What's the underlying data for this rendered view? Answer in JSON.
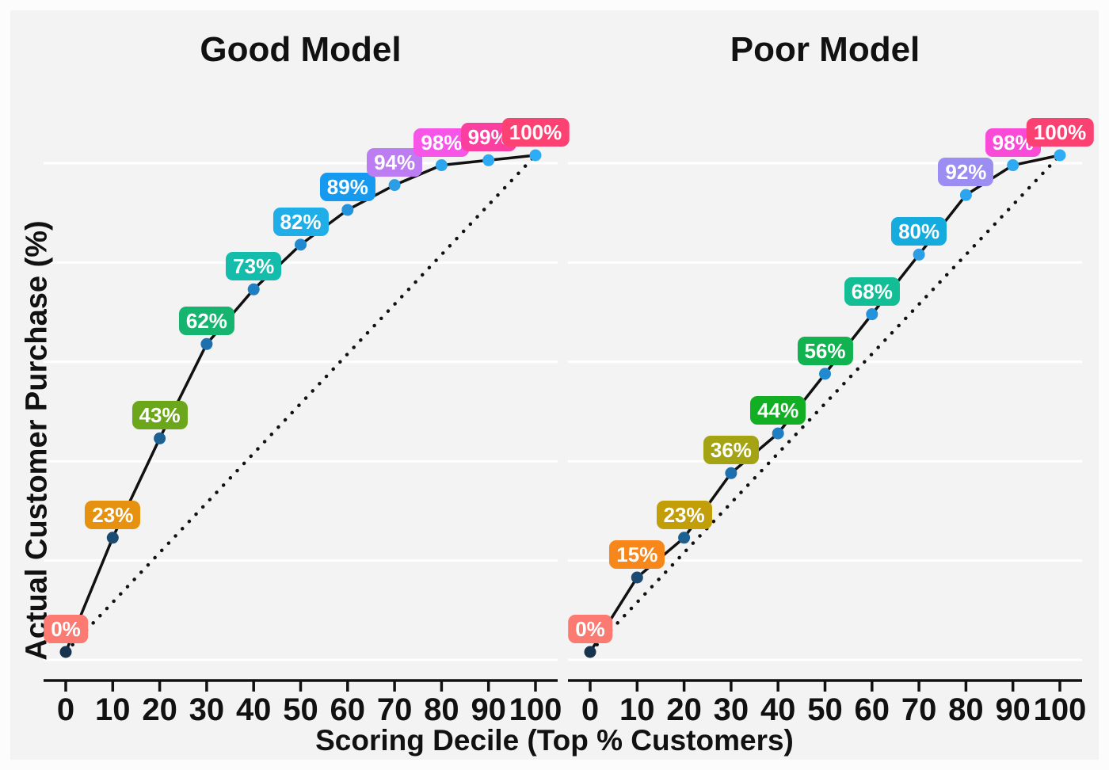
{
  "figure": {
    "x_axis_title": "Scoring Decile (Top % Customers)",
    "y_axis_title": "Actual Customer Purchase (%)",
    "x_tick_labels": [
      "0",
      "10",
      "20",
      "30",
      "40",
      "50",
      "60",
      "70",
      "80",
      "90",
      "100"
    ],
    "background_color": "#f3f3f3",
    "gridline_color": "#ffffff",
    "axis_color": "#111111",
    "curve_color": "#111111",
    "baseline_color": "#111111"
  },
  "chart_data": [
    {
      "type": "line",
      "title": "Good Model",
      "xlabel": "Scoring Decile (Top % Customers)",
      "ylabel": "Actual Customer Purchase (%)",
      "x": [
        0,
        10,
        20,
        30,
        40,
        50,
        60,
        70,
        80,
        90,
        100
      ],
      "values": [
        0,
        23,
        43,
        62,
        73,
        82,
        89,
        94,
        98,
        99,
        100
      ],
      "point_labels": [
        "0%",
        "23%",
        "43%",
        "62%",
        "73%",
        "82%",
        "89%",
        "94%",
        "98%",
        "99%",
        "100%"
      ],
      "label_colors": [
        "#FB7A72",
        "#E69110",
        "#6BA61B",
        "#15B56F",
        "#14BCAC",
        "#1FAEE8",
        "#169AF0",
        "#BD7DF2",
        "#F655E8",
        "#FB3FA1",
        "#FB4273"
      ],
      "point_colors": [
        "#17344F",
        "#1B4B73",
        "#1D6092",
        "#1E6FAE",
        "#1F7FC2",
        "#2189CF",
        "#2493DB",
        "#2D9DE6",
        "#2BA5EE",
        "#2EAAF3",
        "#2EADF6"
      ],
      "baseline": {
        "style": "dotted",
        "from": [
          0,
          0
        ],
        "to": [
          100,
          100
        ]
      },
      "xlim": [
        0,
        100
      ],
      "ylim": [
        0,
        100
      ],
      "gridline_values": [
        0,
        20,
        40,
        60,
        80,
        100
      ],
      "grid": "horizontal-only",
      "legend": "none"
    },
    {
      "type": "line",
      "title": "Poor Model",
      "xlabel": "Scoring Decile (Top % Customers)",
      "ylabel": "Actual Customer Purchase (%)",
      "x": [
        0,
        10,
        20,
        30,
        40,
        50,
        60,
        70,
        80,
        90,
        100
      ],
      "values": [
        0,
        15,
        23,
        36,
        44,
        56,
        68,
        80,
        92,
        98,
        100
      ],
      "point_labels": [
        "0%",
        "15%",
        "23%",
        "36%",
        "44%",
        "56%",
        "68%",
        "80%",
        "92%",
        "98%",
        "100%"
      ],
      "label_colors": [
        "#FB7A72",
        "#F8871B",
        "#C29E08",
        "#A3A314",
        "#12AE24",
        "#11B351",
        "#13BD95",
        "#16ABDE",
        "#9B8DF2",
        "#F94BD8",
        "#FB4072"
      ],
      "point_colors": [
        "#17344F",
        "#1B4B73",
        "#1D6092",
        "#1E6FAE",
        "#1F7FC2",
        "#2189CF",
        "#2493DB",
        "#2D9DE6",
        "#2BA5EE",
        "#2EAAF3",
        "#2EADF6"
      ],
      "baseline": {
        "style": "dotted",
        "from": [
          0,
          0
        ],
        "to": [
          100,
          100
        ]
      },
      "xlim": [
        0,
        100
      ],
      "ylim": [
        0,
        100
      ],
      "gridline_values": [
        0,
        20,
        40,
        60,
        80,
        100
      ],
      "grid": "horizontal-only",
      "legend": "none"
    }
  ]
}
